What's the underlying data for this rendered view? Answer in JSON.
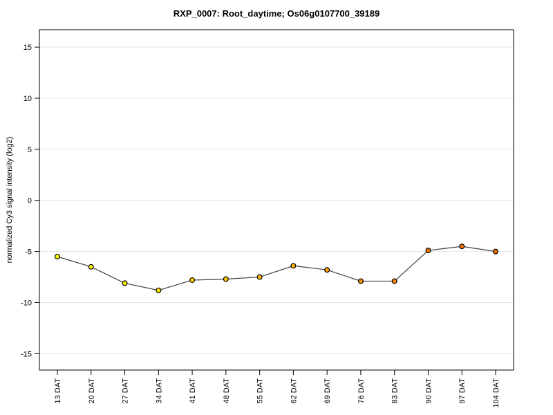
{
  "page": {
    "background_color": "#FFFFFF"
  },
  "chart": {
    "title": "RXP_0007: Root_daytime; Os06g0107700_39189",
    "ylabel": "normalized Cy3 signal intensity (log2)"
  },
  "chart_data": {
    "type": "line",
    "title": "RXP_0007: Root_daytime; Os06g0107700_39189",
    "xlabel": "",
    "ylabel": "normalized Cy3 signal intensity (log2)",
    "categories": [
      "13 DAT",
      "20 DAT",
      "27 DAT",
      "34 DAT",
      "41 DAT",
      "48 DAT",
      "55 DAT",
      "62 DAT",
      "69 DAT",
      "76 DAT",
      "83 DAT",
      "90 DAT",
      "97 DAT",
      "104 DAT"
    ],
    "values": [
      -5.5,
      -6.5,
      -8.1,
      -8.8,
      -7.8,
      -7.7,
      -7.5,
      -6.4,
      -6.8,
      -7.9,
      -7.9,
      -4.9,
      -4.5,
      -5.0
    ],
    "point_colors": [
      "#FFFF00",
      "#FFF500",
      "#FFEB00",
      "#FFE000",
      "#FFD400",
      "#FFC800",
      "#FFBB00",
      "#FFAD00",
      "#FF9F00",
      "#FC9200",
      "#F88600",
      "#F57B00",
      "#F07500",
      "#EE7000"
    ],
    "yticks": [
      15,
      10,
      5,
      0,
      -5,
      -10,
      -15
    ],
    "ylim": [
      -16.6,
      16.7
    ],
    "grid": "horizontal",
    "legend_position": "none",
    "line_color": "#3F3F3F",
    "point_border_color": "#000000",
    "gridline_color": "#E4E4E4",
    "axis_color": "#000000",
    "tick_label_color": "#000000"
  }
}
